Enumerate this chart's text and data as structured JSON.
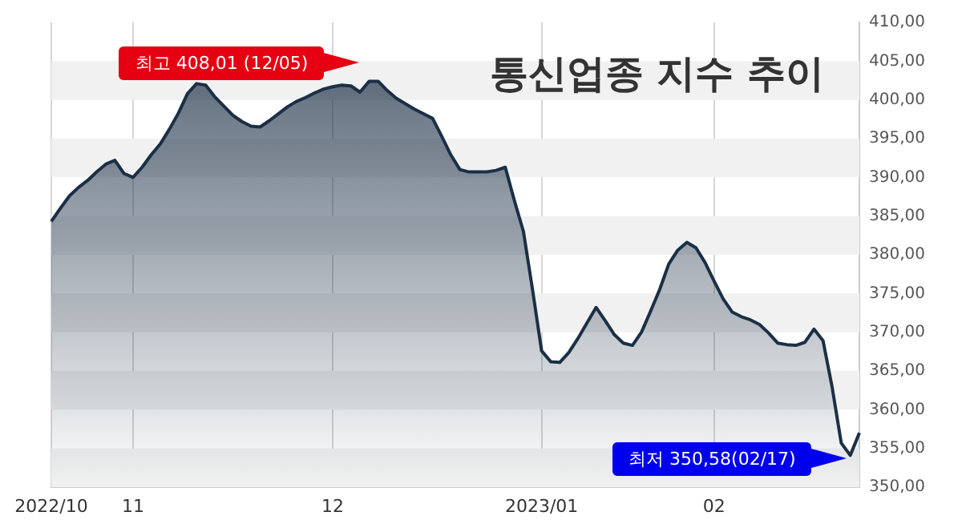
{
  "chart_data": {
    "type": "area",
    "title": "통신업종 지수 추이",
    "categories": [
      "2022/10",
      null,
      null,
      null,
      null,
      null,
      null,
      null,
      null,
      "11",
      null,
      null,
      null,
      null,
      null,
      null,
      null,
      null,
      null,
      null,
      null,
      null,
      null,
      null,
      null,
      null,
      null,
      null,
      null,
      null,
      null,
      "12",
      null,
      null,
      null,
      null,
      null,
      null,
      null,
      null,
      null,
      null,
      null,
      null,
      null,
      null,
      null,
      null,
      null,
      null,
      null,
      null,
      null,
      null,
      "2023/01",
      null,
      null,
      null,
      null,
      null,
      null,
      null,
      null,
      null,
      null,
      null,
      null,
      null,
      null,
      null,
      null,
      null,
      null,
      "02",
      null,
      null,
      null,
      null,
      null,
      null,
      null,
      null,
      null,
      null,
      null,
      null,
      null,
      null,
      null,
      null
    ],
    "series": [
      {
        "color": "#1b2f45",
        "values": [
          384.3,
          386.0,
          387.6,
          388.7,
          389.6,
          390.7,
          391.7,
          392.2,
          390.5,
          390.0,
          391.3,
          392.9,
          394.3,
          396.2,
          398.3,
          400.8,
          402.1,
          401.9,
          400.4,
          399.2,
          398.0,
          397.2,
          396.6,
          396.5,
          397.3,
          398.2,
          399.1,
          399.8,
          400.3,
          400.9,
          401.4,
          401.7,
          401.9,
          401.8,
          401.0,
          402.4,
          402.4,
          401.2,
          400.2,
          399.5,
          398.8,
          398.2,
          397.6,
          395.3,
          392.9,
          391.0,
          390.7,
          390.7,
          390.7,
          390.9,
          391.3,
          387.0,
          383.0,
          375.5,
          367.6,
          366.2,
          366.1,
          367.4,
          369.2,
          371.2,
          373.2,
          371.5,
          369.7,
          368.6,
          368.3,
          370.0,
          372.7,
          375.5,
          378.8,
          380.6,
          381.6,
          380.9,
          379.0,
          376.6,
          374.3,
          372.6,
          372.0,
          371.6,
          371.0,
          369.9,
          368.6,
          368.4,
          368.3,
          368.7,
          370.4,
          368.9,
          362.9,
          355.7,
          354.1,
          357.0
        ]
      }
    ],
    "ylim": [
      350,
      410
    ],
    "yticks": [
      {
        "value": 350,
        "label": "350,00"
      },
      {
        "value": 355,
        "label": "355,00"
      },
      {
        "value": 360,
        "label": "360,00"
      },
      {
        "value": 365,
        "label": "365,00"
      },
      {
        "value": 370,
        "label": "370,00"
      },
      {
        "value": 375,
        "label": "375,00"
      },
      {
        "value": 380,
        "label": "380,00"
      },
      {
        "value": 385,
        "label": "385,00"
      },
      {
        "value": 390,
        "label": "390,00"
      },
      {
        "value": 395,
        "label": "395,00"
      },
      {
        "value": 400,
        "label": "400,00"
      },
      {
        "value": 405,
        "label": "405,00"
      },
      {
        "value": 410,
        "label": "410,00"
      }
    ],
    "grid": true,
    "legend": false,
    "marker": "none",
    "line_style": "solid",
    "annotations": [
      "최고 408,01 (12/05)",
      "최저 350,58(02/17)"
    ]
  }
}
